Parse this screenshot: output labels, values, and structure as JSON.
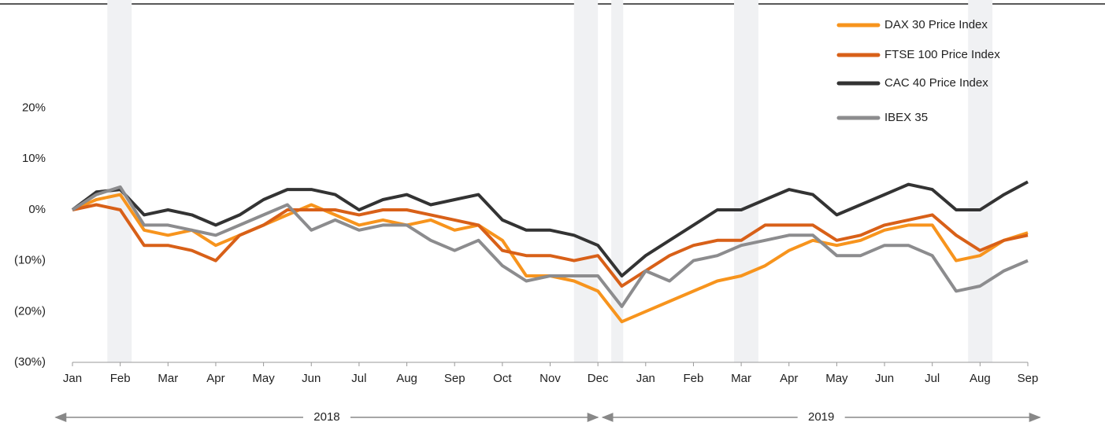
{
  "chart_data": {
    "type": "line",
    "x": [
      0,
      0.5,
      1,
      1.5,
      2,
      2.5,
      3,
      3.5,
      4,
      4.5,
      5,
      5.5,
      6,
      6.5,
      7,
      7.5,
      8,
      8.5,
      9,
      9.5,
      10,
      10.5,
      11,
      11.5,
      12,
      12.5,
      13,
      13.5,
      14,
      14.5,
      15,
      15.5,
      16,
      16.5,
      17,
      17.5,
      18,
      18.5,
      19,
      19.5,
      20
    ],
    "xlim": [
      0,
      20
    ],
    "xticks": [
      {
        "value": 0,
        "label": "Jan"
      },
      {
        "value": 1,
        "label": "Feb"
      },
      {
        "value": 2,
        "label": "Mar"
      },
      {
        "value": 3,
        "label": "Apr"
      },
      {
        "value": 4,
        "label": "May"
      },
      {
        "value": 5,
        "label": "Jun"
      },
      {
        "value": 6,
        "label": "Jul"
      },
      {
        "value": 7,
        "label": "Aug"
      },
      {
        "value": 8,
        "label": "Sep"
      },
      {
        "value": 9,
        "label": "Oct"
      },
      {
        "value": 10,
        "label": "Nov"
      },
      {
        "value": 11,
        "label": "Dec"
      },
      {
        "value": 12,
        "label": "Jan"
      },
      {
        "value": 13,
        "label": "Feb"
      },
      {
        "value": 14,
        "label": "Mar"
      },
      {
        "value": 15,
        "label": "Apr"
      },
      {
        "value": 16,
        "label": "May"
      },
      {
        "value": 17,
        "label": "Jun"
      },
      {
        "value": 18,
        "label": "Jul"
      },
      {
        "value": 19,
        "label": "Aug"
      },
      {
        "value": 20,
        "label": "Sep"
      }
    ],
    "ylim": [
      -30,
      20
    ],
    "yticks": [
      {
        "value": 20,
        "label": "20%"
      },
      {
        "value": 10,
        "label": "10%"
      },
      {
        "value": 0,
        "label": "0%"
      },
      {
        "value": -10,
        "label": "(10%)"
      },
      {
        "value": -20,
        "label": "(20%)"
      },
      {
        "value": -30,
        "label": "(30%)"
      }
    ],
    "shaded_ranges": [
      [
        0.73,
        1.24
      ],
      [
        10.5,
        11.0
      ],
      [
        11.28,
        11.53
      ],
      [
        13.85,
        14.36
      ],
      [
        18.75,
        19.26
      ]
    ],
    "annotations": [
      {
        "text": "2018",
        "x": [
          -0.35,
          11.0
        ]
      },
      {
        "text": "2019",
        "x": [
          11.1,
          20.25
        ]
      }
    ],
    "series": [
      {
        "name": "DAX 30 Price Index",
        "color": "#f7941d",
        "values": [
          0,
          2,
          3,
          -4,
          -5,
          -4,
          -7,
          -5,
          -3,
          -1,
          1,
          -1,
          -3,
          -2,
          -3,
          -2,
          -4,
          -3,
          -6,
          -13,
          -13,
          -14,
          -16,
          -22,
          -20,
          -18,
          -16,
          -14,
          -13,
          -11,
          -8,
          -6,
          -7,
          -6,
          -4,
          -3,
          -3,
          -10,
          -9,
          -6,
          -4.5
        ]
      },
      {
        "name": "FTSE 100 Price Index",
        "color": "#d86018",
        "values": [
          0,
          1,
          0,
          -7,
          -7,
          -8,
          -10,
          -5,
          -3,
          0,
          0,
          0,
          -1,
          0,
          0,
          -1,
          -2,
          -3,
          -8,
          -9,
          -9,
          -10,
          -9,
          -15,
          -12,
          -9,
          -7,
          -6,
          -6,
          -3,
          -3,
          -3,
          -6,
          -5,
          -3,
          -2,
          -1,
          -5,
          -8,
          -6,
          -5
        ]
      },
      {
        "name": "CAC 40 Price Index",
        "color": "#333333",
        "values": [
          0,
          3.5,
          4,
          -1,
          0,
          -1,
          -3,
          -1,
          2,
          4,
          4,
          3,
          0,
          2,
          3,
          1,
          2,
          3,
          -2,
          -4,
          -4,
          -5,
          -7,
          -13,
          -9,
          -6,
          -3,
          0,
          0,
          2,
          4,
          3,
          -1,
          1,
          3,
          5,
          4,
          0,
          0,
          3,
          5.5
        ]
      },
      {
        "name": "IBEX 35",
        "color": "#8c8c8e",
        "values": [
          0,
          3,
          4.5,
          -3,
          -3,
          -4,
          -5,
          -3,
          -1,
          1,
          -4,
          -2,
          -4,
          -3,
          -3,
          -6,
          -8,
          -6,
          -11,
          -14,
          -13,
          -13,
          -13,
          -19,
          -12,
          -14,
          -10,
          -9,
          -7,
          -6,
          -5,
          -5,
          -9,
          -9,
          -7,
          -7,
          -9,
          -16,
          -15,
          -12,
          -10
        ]
      }
    ]
  }
}
